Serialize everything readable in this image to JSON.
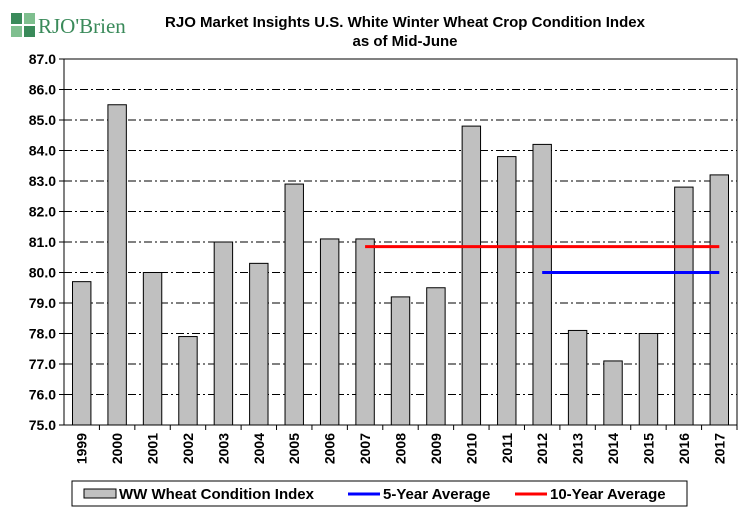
{
  "logo": {
    "text": "RJO'Brien",
    "primary_color": "#3a8a5a"
  },
  "chart_data": {
    "type": "bar",
    "title": "RJO Market Insights U.S. White Winter Wheat Crop Condition Index",
    "subtitle": "as of Mid-June",
    "xlabel": "",
    "ylabel": "",
    "ylim": [
      75.0,
      87.0
    ],
    "ytick_step": 1.0,
    "grid": true,
    "legend_position": "bottom",
    "categories": [
      "1999",
      "2000",
      "2001",
      "2002",
      "2003",
      "2004",
      "2005",
      "2006",
      "2007",
      "2008",
      "2009",
      "2010",
      "2011",
      "2012",
      "2013",
      "2014",
      "2015",
      "2016",
      "2017"
    ],
    "series": [
      {
        "name": "WW Wheat Condition Index",
        "kind": "bar",
        "color": "#c0c0c0",
        "values": [
          79.7,
          85.5,
          80.0,
          77.9,
          81.0,
          80.3,
          82.9,
          81.1,
          81.1,
          79.2,
          79.5,
          84.8,
          83.8,
          84.2,
          78.1,
          77.1,
          78.0,
          82.8,
          83.2
        ]
      },
      {
        "name": "5-Year Average",
        "kind": "line",
        "color": "#0000ff",
        "x_start": "2012",
        "x_end": "2017",
        "value": 80.0
      },
      {
        "name": "10-Year Average",
        "kind": "line",
        "color": "#ff0000",
        "x_start": "2007",
        "x_end": "2017",
        "value": 80.85
      }
    ]
  }
}
